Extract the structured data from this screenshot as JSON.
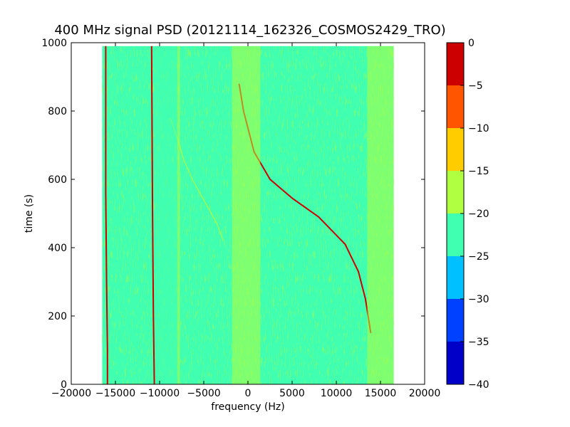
{
  "chart_data": {
    "type": "heatmap",
    "title": "400 MHz signal PSD (20121114_162326_COSMOS2429_TRO)",
    "xlabel": "frequency (Hz)",
    "ylabel": "time (s)",
    "xlim": [
      -20000,
      20000
    ],
    "ylim": [
      0,
      1000
    ],
    "x_ticks": [
      -20000,
      -15000,
      -10000,
      -5000,
      0,
      5000,
      10000,
      15000,
      20000
    ],
    "x_tick_labels": [
      "−20000",
      "−15000",
      "−10000",
      "−5000",
      "0",
      "5000",
      "10000",
      "15000",
      "20000"
    ],
    "y_ticks": [
      0,
      200,
      400,
      600,
      800,
      1000
    ],
    "y_tick_labels": [
      "0",
      "200",
      "400",
      "600",
      "800",
      "1000"
    ],
    "data_extent": {
      "freq_hz": [
        -16500,
        16500
      ],
      "time_s": [
        0,
        990
      ]
    },
    "background_level_db": -22,
    "colorbar": {
      "levels": [
        -40,
        -35,
        -30,
        -25,
        -20,
        -15,
        -10,
        -5,
        0
      ],
      "tick_labels": [
        "−40",
        "−35",
        "−30",
        "−25",
        "−20",
        "−15",
        "−10",
        "−5",
        "0"
      ],
      "colors": [
        "#0000c8",
        "#0040ff",
        "#00c0ff",
        "#40ffb0",
        "#b0ff40",
        "#ffcc00",
        "#ff5500",
        "#cc0000"
      ]
    },
    "features": [
      {
        "name": "carrier",
        "level_db": -2,
        "points": [
          [
            -15900,
            0
          ],
          [
            -15900,
            100
          ],
          [
            -16000,
            300
          ],
          [
            -16100,
            560
          ],
          [
            -16100,
            990
          ]
        ]
      },
      {
        "name": "carrier",
        "level_db": -2,
        "points": [
          [
            -10600,
            0
          ],
          [
            -10700,
            200
          ],
          [
            -10800,
            500
          ],
          [
            -10900,
            990
          ]
        ]
      },
      {
        "name": "doppler",
        "level_db": -2,
        "points": [
          [
            13900,
            150
          ],
          [
            13300,
            250
          ],
          [
            12500,
            330
          ],
          [
            11000,
            410
          ],
          [
            8000,
            490
          ],
          [
            5000,
            545
          ],
          [
            2500,
            600
          ],
          [
            700,
            680
          ],
          [
            -500,
            800
          ],
          [
            -1000,
            880
          ]
        ]
      },
      {
        "name": "doppler",
        "level_db": -17,
        "points": [
          [
            -2800,
            420
          ],
          [
            -3500,
            470
          ],
          [
            -4800,
            530
          ],
          [
            -6300,
            600
          ],
          [
            -7300,
            660
          ],
          [
            -8000,
            720
          ],
          [
            -8800,
            780
          ]
        ]
      },
      {
        "name": "band",
        "level_db": -22,
        "x_range": [
          -10500,
          -8000
        ]
      },
      {
        "name": "band",
        "level_db": -17,
        "x_range": [
          -8000,
          -7700
        ]
      },
      {
        "name": "band",
        "level_db": -17,
        "x_range": [
          -1800,
          1400
        ]
      },
      {
        "name": "band",
        "level_db": -17,
        "x_range": [
          13500,
          16500
        ]
      }
    ]
  }
}
